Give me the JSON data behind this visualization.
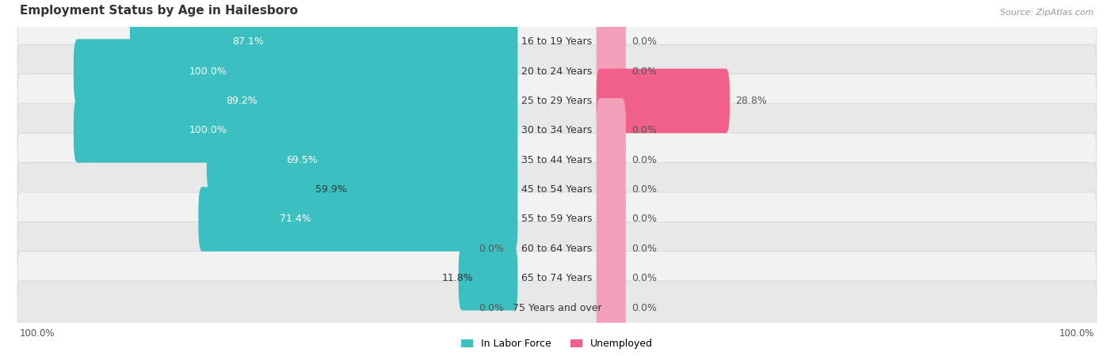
{
  "title": "Employment Status by Age in Hailesboro",
  "source": "Source: ZipAtlas.com",
  "categories": [
    "16 to 19 Years",
    "20 to 24 Years",
    "25 to 29 Years",
    "30 to 34 Years",
    "35 to 44 Years",
    "45 to 54 Years",
    "55 to 59 Years",
    "60 to 64 Years",
    "65 to 74 Years",
    "75 Years and over"
  ],
  "labor_force": [
    87.1,
    100.0,
    89.2,
    100.0,
    69.5,
    59.9,
    71.4,
    0.0,
    11.8,
    0.0
  ],
  "unemployed": [
    0.0,
    0.0,
    28.8,
    0.0,
    0.0,
    0.0,
    0.0,
    0.0,
    0.0,
    0.0
  ],
  "labor_force_color": "#3cbfc0",
  "unemployed_color": "#f4a0bc",
  "unemployed_large_color": "#f0608a",
  "row_light_color": "#f2f2f2",
  "row_dark_color": "#e8e8e8",
  "row_shadow_color": "#d0d0d0",
  "label_fontsize": 9,
  "title_fontsize": 11,
  "source_fontsize": 8,
  "max_value": 100.0,
  "stub_value": 5.0,
  "legend_labor_color": "#3cbfc0",
  "legend_unemployed_color": "#f0608a"
}
